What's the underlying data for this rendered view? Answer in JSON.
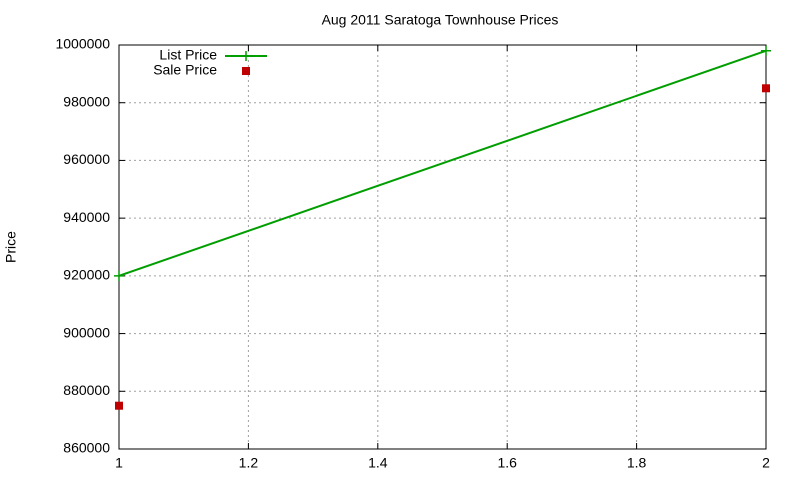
{
  "chart_data": {
    "type": "line",
    "title": "Aug 2011 Saratoga Townhouse Prices",
    "y_label": "Price",
    "x": [
      1,
      2
    ],
    "series": [
      {
        "name": "List Price",
        "color": "#009e00",
        "style": "linespoints",
        "values": [
          920000,
          998000
        ]
      },
      {
        "name": "Sale Price",
        "color": "#c00000",
        "style": "points",
        "values": [
          875000,
          985000
        ]
      }
    ],
    "xlim": [
      1,
      2
    ],
    "xticks": [
      1,
      1.2,
      1.4,
      1.6,
      1.8,
      2
    ],
    "ylim": [
      860000,
      1000000
    ],
    "yticks": [
      860000,
      880000,
      900000,
      920000,
      940000,
      960000,
      980000,
      1000000
    ],
    "grid": true,
    "legend": "top-left"
  }
}
